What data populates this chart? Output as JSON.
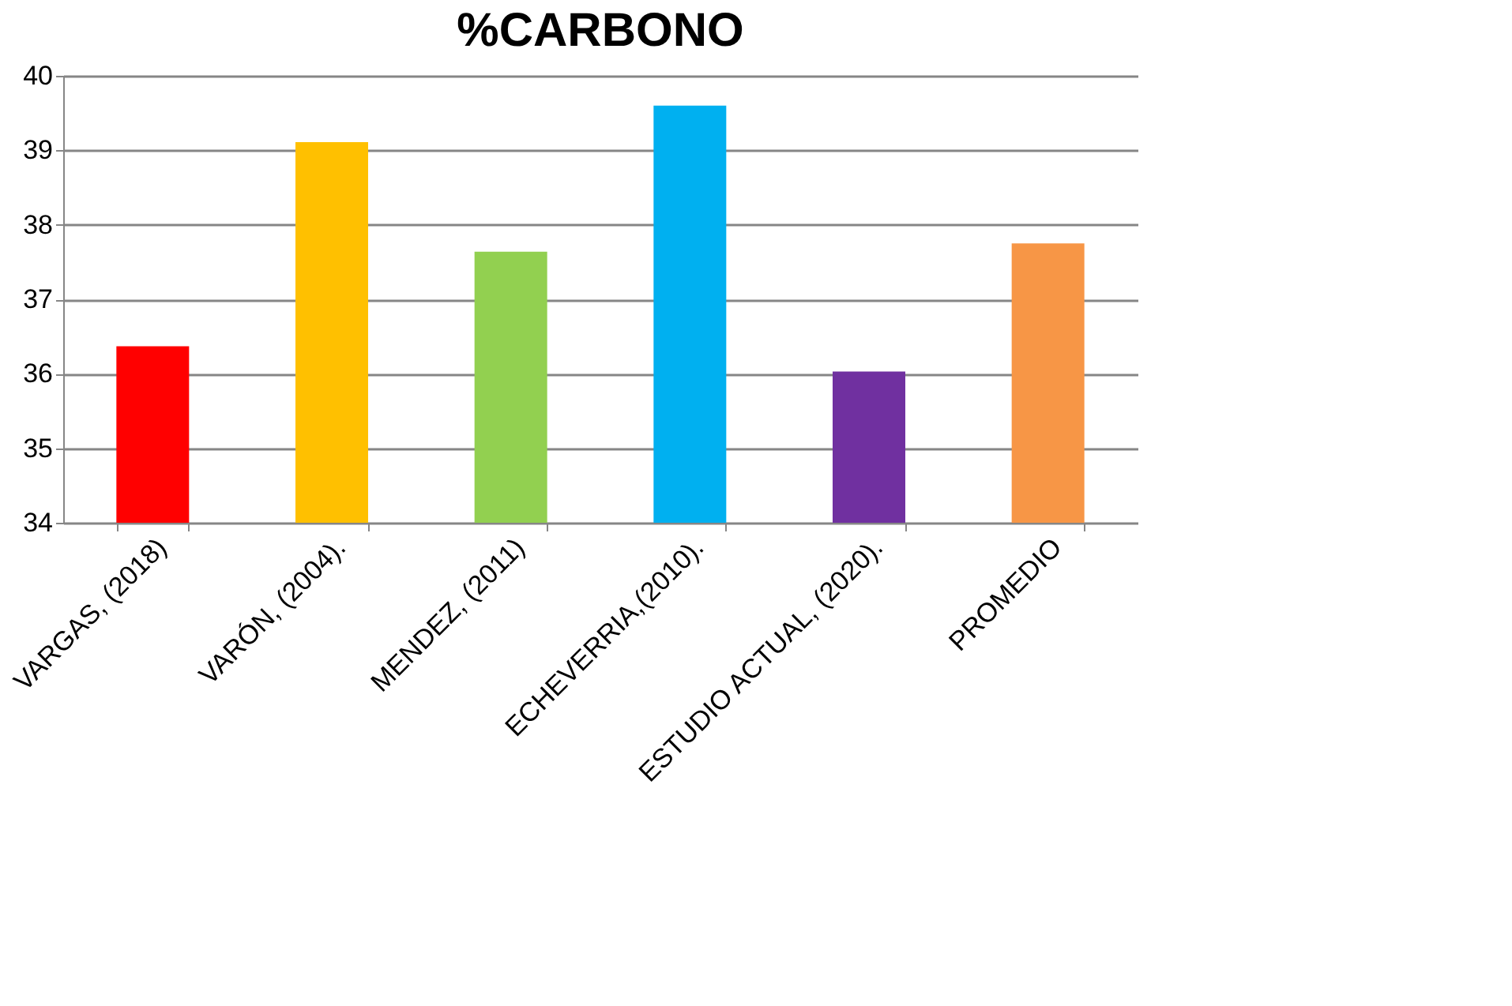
{
  "chart_data": {
    "type": "bar",
    "title": "%CARBONO",
    "categories": [
      "VARGAS, (2018)",
      "VARÓN, (2004).",
      "MENDEZ, (2011)",
      "ECHEVERRIA,(2010).",
      "ESTUDIO ACTUAL, (2020).",
      "PROMEDIO"
    ],
    "values": [
      36.37,
      39.11,
      37.64,
      39.6,
      36.03,
      37.75
    ],
    "colors": [
      "#ff0000",
      "#ffc000",
      "#92d050",
      "#00b0f0",
      "#7030a0",
      "#f79646"
    ],
    "ylim": [
      34,
      40
    ],
    "yticks": [
      34,
      35,
      36,
      37,
      38,
      39,
      40
    ],
    "grid": "y",
    "legend": false
  }
}
